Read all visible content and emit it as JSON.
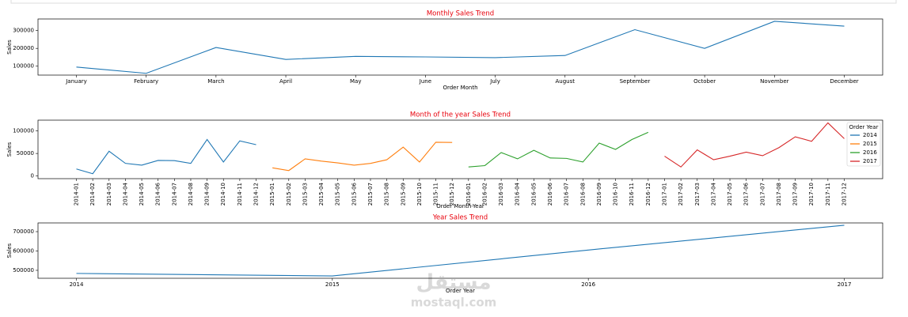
{
  "chart_data": [
    {
      "type": "line",
      "title": "Monthly Sales Trend",
      "x_label": "Order Month",
      "y_label": "Sales",
      "categories": [
        "January",
        "February",
        "March",
        "April",
        "May",
        "June",
        "July",
        "August",
        "September",
        "October",
        "November",
        "December"
      ],
      "series": [
        {
          "name": "Sales",
          "color": "#1f77b4",
          "values": [
            95000,
            60000,
            205000,
            138000,
            155000,
            152000,
            148000,
            160000,
            305000,
            200000,
            352000,
            325000
          ]
        }
      ],
      "ylim": [
        50000,
        365000
      ],
      "yticks": [
        100000,
        200000,
        300000
      ],
      "grid": false
    },
    {
      "type": "line",
      "title": "Month of the year Sales Trend",
      "x_label": "Order Month-Year",
      "y_label": "Sales",
      "categories": [
        "2014-01",
        "2014-02",
        "2014-03",
        "2014-04",
        "2014-05",
        "2014-06",
        "2014-07",
        "2014-08",
        "2014-09",
        "2014-10",
        "2014-11",
        "2014-12",
        "2015-01",
        "2015-02",
        "2015-03",
        "2015-04",
        "2015-05",
        "2015-06",
        "2015-07",
        "2015-08",
        "2015-09",
        "2015-10",
        "2015-11",
        "2015-12",
        "2016-01",
        "2016-02",
        "2016-03",
        "2016-04",
        "2016-05",
        "2016-06",
        "2016-07",
        "2016-08",
        "2016-09",
        "2016-10",
        "2016-11",
        "2016-12",
        "2017-01",
        "2017-02",
        "2017-03",
        "2017-04",
        "2017-05",
        "2017-06",
        "2017-07",
        "2017-08",
        "2017-09",
        "2017-10",
        "2017-11",
        "2017-12"
      ],
      "series": [
        {
          "name": "2014",
          "color": "#1f77b4",
          "values": [
            15500,
            5000,
            55000,
            28000,
            24000,
            34500,
            34000,
            28000,
            81000,
            31000,
            78000,
            69500,
            null,
            null,
            null,
            null,
            null,
            null,
            null,
            null,
            null,
            null,
            null,
            null,
            null,
            null,
            null,
            null,
            null,
            null,
            null,
            null,
            null,
            null,
            null,
            null,
            null,
            null,
            null,
            null,
            null,
            null,
            null,
            null,
            null,
            null,
            null,
            null
          ]
        },
        {
          "name": "2015",
          "color": "#ff7f0e",
          "values": [
            null,
            null,
            null,
            null,
            null,
            null,
            null,
            null,
            null,
            null,
            null,
            null,
            18000,
            12000,
            38000,
            33000,
            29000,
            24000,
            28000,
            36000,
            64000,
            31000,
            75000,
            74500,
            null,
            null,
            null,
            null,
            null,
            null,
            null,
            null,
            null,
            null,
            null,
            null,
            null,
            null,
            null,
            null,
            null,
            null,
            null,
            null,
            null,
            null,
            null,
            null
          ]
        },
        {
          "name": "2016",
          "color": "#2ca02c",
          "values": [
            null,
            null,
            null,
            null,
            null,
            null,
            null,
            null,
            null,
            null,
            null,
            null,
            null,
            null,
            null,
            null,
            null,
            null,
            null,
            null,
            null,
            null,
            null,
            null,
            20000,
            23000,
            52000,
            38000,
            57000,
            40000,
            39000,
            31000,
            73000,
            59000,
            81000,
            97000,
            null,
            null,
            null,
            null,
            null,
            null,
            null,
            null,
            null,
            null,
            null,
            null
          ]
        },
        {
          "name": "2017",
          "color": "#d62728",
          "values": [
            null,
            null,
            null,
            null,
            null,
            null,
            null,
            null,
            null,
            null,
            null,
            null,
            null,
            null,
            null,
            null,
            null,
            null,
            null,
            null,
            null,
            null,
            null,
            null,
            null,
            null,
            null,
            null,
            null,
            null,
            null,
            null,
            null,
            null,
            null,
            null,
            44000,
            20000,
            58000,
            36000,
            44000,
            53000,
            45000,
            63000,
            87000,
            77000,
            118000,
            83000
          ]
        }
      ],
      "legend": "upper right",
      "legend_title": "Order Year",
      "ylim": [
        -6000,
        124000
      ],
      "yticks": [
        0,
        50000,
        100000
      ],
      "grid": false
    },
    {
      "type": "line",
      "title": "Year Sales Trend",
      "x_label": "Order Year",
      "y_label": "Sales",
      "x": [
        2014,
        2015,
        2016,
        2017
      ],
      "series": [
        {
          "name": "Sales",
          "color": "#1f77b4",
          "values": [
            484000,
            471000,
            605000,
            733000
          ]
        }
      ],
      "xlim": [
        2013.85,
        2017.15
      ],
      "xticks": [
        2014,
        2015,
        2016,
        2017
      ],
      "ylim": [
        459000,
        745000
      ],
      "yticks": [
        500000,
        600000,
        700000
      ],
      "grid": false
    }
  ],
  "watermark": {
    "arabic": "مستقل",
    "latin": "mostaql.com"
  }
}
